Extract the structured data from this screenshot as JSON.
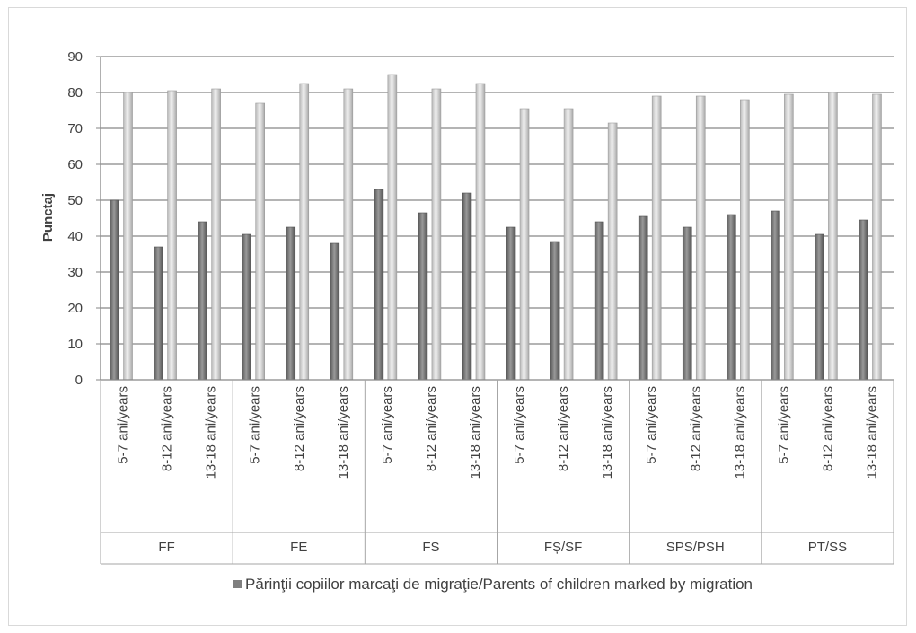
{
  "chart_data": {
    "type": "bar",
    "ylabel": "Punctaj",
    "ylim": [
      0,
      90
    ],
    "yticks": [
      "0",
      "10",
      "20",
      "30",
      "40",
      "50",
      "60",
      "70",
      "80",
      "90"
    ],
    "grid": true,
    "legend_position": "bottom",
    "groups": [
      "FF",
      "FE",
      "FS",
      "FȘ/SF",
      "SPS/PSH",
      "PT/SS"
    ],
    "subcategories": [
      "5-7 ani/years",
      "8-12 ani/years",
      "13-18 ani/years"
    ],
    "legend": [
      "Părinţii copiilor marcaţi de migraţie/Parents of children marked by migration"
    ],
    "colors": {
      "dark": "#7f7f7f",
      "light": "#d9d9d9"
    },
    "series": [
      {
        "name": "Părinţii copiilor marcaţi de migraţie/Parents of children marked by migration",
        "values": [
          50,
          37,
          44,
          40.5,
          42.5,
          38,
          53,
          46.5,
          52,
          42.5,
          38.5,
          44,
          45.5,
          42.5,
          46,
          47,
          40.5,
          44.5
        ]
      },
      {
        "values": [
          80,
          80.5,
          81,
          77,
          82.5,
          81,
          85,
          81,
          82.5,
          75.5,
          75.5,
          71.5,
          79,
          79,
          78,
          79.5,
          80,
          79.5
        ]
      }
    ]
  }
}
